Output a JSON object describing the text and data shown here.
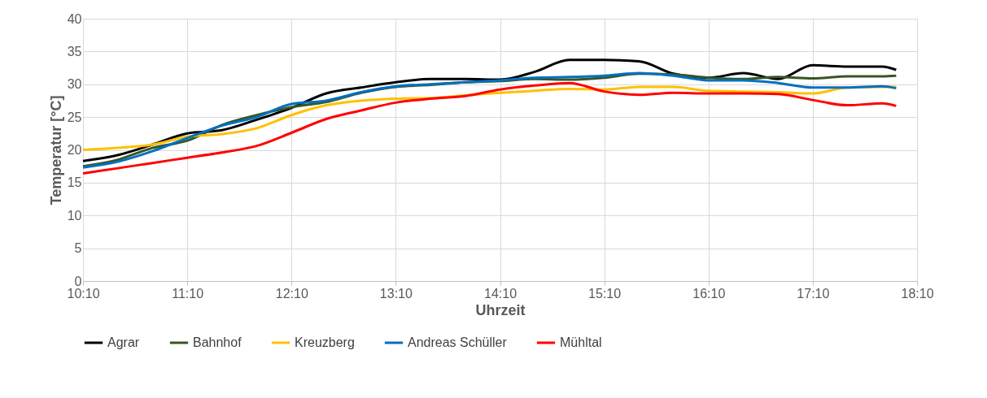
{
  "chart_data": {
    "type": "line",
    "xlabel": "Uhrzeit",
    "ylabel": "Temperatur [°C]",
    "x": [
      10.1667,
      10.5,
      10.8333,
      11.1667,
      11.5,
      11.8333,
      12.1667,
      12.5,
      12.8333,
      13.1667,
      13.5,
      13.8333,
      14.1667,
      14.5,
      14.8333,
      15.1667,
      15.5,
      15.8333,
      16.1667,
      16.5,
      16.8333,
      17.1667,
      17.5,
      17.8333,
      17.9667
    ],
    "series": [
      {
        "name": "Agrar",
        "color": "#000000",
        "values": [
          18.3,
          19.2,
          20.8,
          22.5,
          23.0,
          24.6,
          26.4,
          28.6,
          29.5,
          30.3,
          30.8,
          30.8,
          30.7,
          31.9,
          33.7,
          33.7,
          33.5,
          31.6,
          31.0,
          31.7,
          30.8,
          32.9,
          32.7,
          32.7,
          32.2
        ]
      },
      {
        "name": "Bahnhof",
        "color": "#375623",
        "values": [
          17.5,
          18.5,
          20.3,
          21.4,
          23.8,
          25.3,
          26.5,
          27.3,
          28.7,
          29.6,
          29.9,
          30.3,
          30.5,
          30.8,
          30.7,
          31.0,
          31.6,
          31.5,
          31.0,
          30.8,
          31.1,
          30.9,
          31.2,
          31.2,
          31.3
        ]
      },
      {
        "name": "Kreuzberg",
        "color": "#ffc000",
        "values": [
          20.0,
          20.3,
          20.8,
          22.0,
          22.4,
          23.3,
          25.3,
          26.8,
          27.5,
          27.8,
          27.9,
          28.3,
          28.7,
          29.0,
          29.3,
          29.2,
          29.6,
          29.6,
          29.0,
          28.9,
          28.8,
          28.6,
          29.5,
          29.6,
          29.6
        ]
      },
      {
        "name": "Andreas Schüller",
        "color": "#0070c0",
        "values": [
          17.3,
          18.2,
          19.8,
          21.8,
          23.7,
          25.0,
          27.0,
          27.5,
          28.8,
          29.7,
          30.0,
          30.3,
          30.6,
          31.0,
          31.1,
          31.3,
          31.7,
          31.3,
          30.6,
          30.6,
          30.2,
          29.5,
          29.5,
          29.7,
          29.4
        ]
      },
      {
        "name": "Mühltal",
        "color": "#ff0000",
        "values": [
          16.4,
          17.2,
          18.0,
          18.8,
          19.6,
          20.6,
          22.6,
          24.7,
          26.0,
          27.2,
          27.8,
          28.2,
          29.2,
          29.8,
          30.2,
          28.9,
          28.4,
          28.7,
          28.6,
          28.6,
          28.5,
          27.6,
          26.8,
          27.1,
          26.7
        ]
      }
    ],
    "xlim": [
      10.1667,
      18.1667
    ],
    "xticks": [
      {
        "value": 10.1667,
        "label": "10:10"
      },
      {
        "value": 11.1667,
        "label": "11:10"
      },
      {
        "value": 12.1667,
        "label": "12:10"
      },
      {
        "value": 13.1667,
        "label": "13:10"
      },
      {
        "value": 14.1667,
        "label": "14:10"
      },
      {
        "value": 15.1667,
        "label": "15:10"
      },
      {
        "value": 16.1667,
        "label": "16:10"
      },
      {
        "value": 17.1667,
        "label": "17:10"
      },
      {
        "value": 18.1667,
        "label": "18:10"
      }
    ],
    "ylim": [
      0,
      40
    ],
    "yticks": [
      0,
      5,
      10,
      15,
      20,
      25,
      30,
      35,
      40
    ],
    "grid": true,
    "legend": "bottom",
    "marker": "none",
    "line_style": "solid"
  }
}
